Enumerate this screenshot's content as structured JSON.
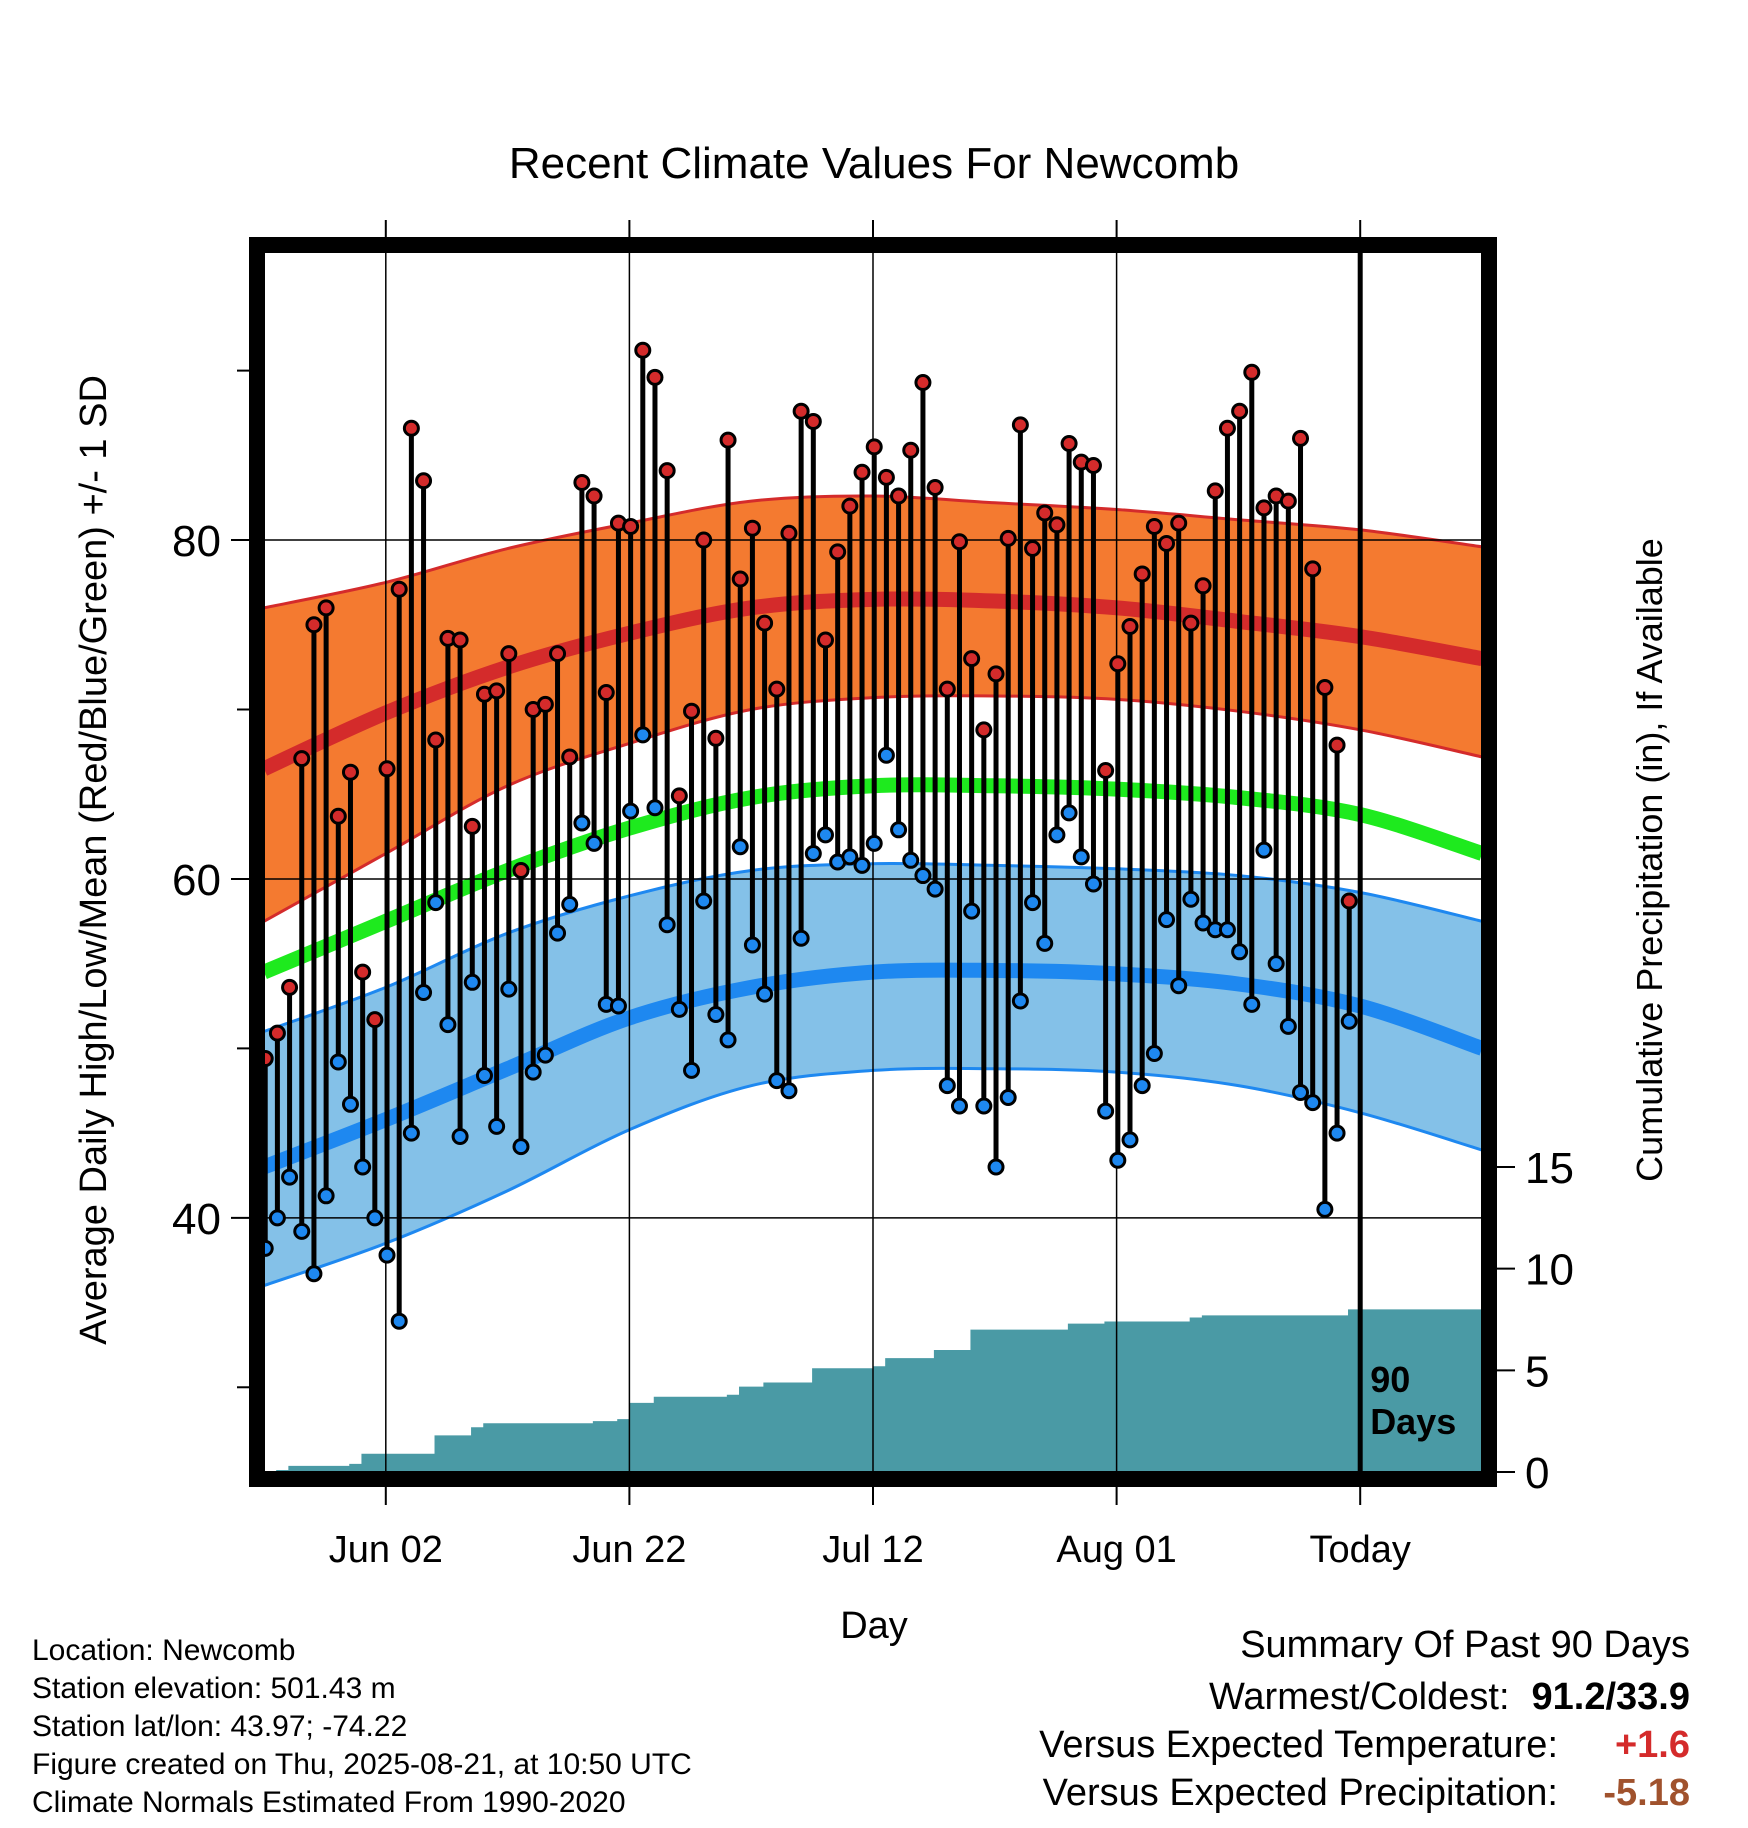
{
  "chart_data": {
    "type": "line",
    "title": "Recent Climate Values For Newcomb",
    "xlabel": "Day",
    "ylabel": "Average Daily High/Low/Mean (Red/Blue/Green) +/- 1 SD",
    "y2label": "Cumulative Precipitation (in), If Available",
    "x_tick_labels": [
      "Jun 02",
      "Jun 22",
      "Jul 12",
      "Aug 01",
      "Today"
    ],
    "x_tick_days": [
      10,
      30,
      50,
      70,
      90
    ],
    "ylim": [
      25,
      97
    ],
    "y_ticks": [
      40,
      60,
      80
    ],
    "y_minor_ticks": [
      30,
      50,
      70,
      90
    ],
    "y2lim": [
      0,
      60
    ],
    "y2_ticks": [
      0,
      5,
      10,
      15
    ],
    "xlim": [
      0,
      100
    ],
    "today_label": "90\nDays",
    "colors": {
      "high_band": "#f47a30",
      "high_mean": "#d42b2b",
      "low_band": "#84c1e8",
      "low_mean": "#1e88f0",
      "mean_normal": "#1eea1e",
      "precip": "#4a9aa5",
      "high_point": "#d42b2b",
      "low_point": "#1e88f0"
    },
    "normals": {
      "days": [
        0,
        10,
        20,
        30,
        40,
        50,
        60,
        70,
        80,
        90,
        100
      ],
      "high_mean": [
        66.5,
        69.8,
        72.5,
        74.5,
        76.0,
        76.5,
        76.4,
        76.0,
        75.2,
        74.3,
        73.0
      ],
      "high_sd_upper": [
        76.0,
        77.5,
        79.5,
        81.0,
        82.3,
        82.6,
        82.2,
        81.8,
        81.2,
        80.6,
        79.6
      ],
      "high_sd_lower": [
        57.5,
        61.5,
        65.5,
        68.0,
        70.0,
        70.7,
        70.8,
        70.6,
        69.9,
        68.8,
        67.2
      ],
      "mean_normal": [
        54.5,
        57.5,
        60.5,
        63.0,
        64.8,
        65.5,
        65.5,
        65.3,
        64.8,
        63.8,
        61.5
      ],
      "low_mean": [
        43.0,
        45.8,
        48.8,
        51.8,
        53.6,
        54.5,
        54.6,
        54.4,
        53.8,
        52.5,
        50.0
      ],
      "low_sd_upper": [
        51.0,
        53.6,
        56.8,
        59.0,
        60.5,
        60.9,
        60.8,
        60.6,
        60.2,
        59.2,
        57.5
      ],
      "low_sd_lower": [
        36.0,
        38.5,
        41.6,
        45.2,
        47.8,
        48.7,
        48.8,
        48.6,
        47.8,
        46.2,
        44.0
      ]
    },
    "daily": {
      "day": [
        0,
        1,
        2,
        3,
        4,
        5,
        6,
        7,
        8,
        9,
        10,
        11,
        12,
        13,
        14,
        15,
        16,
        17,
        18,
        19,
        20,
        21,
        22,
        23,
        24,
        25,
        26,
        27,
        28,
        29,
        30,
        31,
        32,
        33,
        34,
        35,
        36,
        37,
        38,
        39,
        40,
        41,
        42,
        43,
        44,
        45,
        46,
        47,
        48,
        49,
        50,
        51,
        52,
        53,
        54,
        55,
        56,
        57,
        58,
        59,
        60,
        61,
        62,
        63,
        64,
        65,
        66,
        67,
        68,
        69,
        70,
        71,
        72,
        73,
        74,
        75,
        76,
        77,
        78,
        79,
        80,
        81,
        82,
        83,
        84,
        85,
        86,
        87,
        88,
        89
      ],
      "high": [
        49.4,
        50.9,
        53.6,
        67.1,
        75.0,
        76.0,
        63.7,
        66.3,
        54.5,
        51.7,
        66.5,
        77.1,
        86.6,
        83.5,
        68.2,
        74.2,
        74.1,
        63.1,
        70.9,
        71.1,
        73.3,
        60.5,
        70.0,
        70.3,
        73.3,
        67.2,
        83.4,
        82.6,
        71.0,
        81.0,
        80.8,
        91.2,
        89.6,
        84.1,
        64.9,
        69.9,
        80.0,
        68.3,
        85.9,
        77.7,
        80.7,
        75.1,
        71.2,
        80.4,
        87.6,
        87.0,
        74.1,
        79.3,
        82.0,
        84.0,
        85.5,
        83.7,
        82.6,
        85.3,
        89.3,
        83.1,
        71.2,
        79.9,
        73.0,
        68.8,
        72.1,
        80.1,
        86.8,
        79.5,
        81.6,
        80.9,
        85.7,
        84.6,
        84.4,
        66.4,
        72.7,
        74.9,
        78.0,
        80.8,
        79.8,
        81.0,
        75.1,
        77.3,
        82.9,
        86.6,
        87.6,
        89.9,
        81.9,
        82.6,
        82.3,
        86.0,
        78.3,
        71.3,
        67.9,
        58.7
      ],
      "low": [
        38.2,
        40.0,
        42.4,
        39.2,
        36.7,
        41.3,
        49.2,
        46.7,
        43.0,
        40.0,
        37.8,
        33.9,
        45.0,
        53.3,
        58.6,
        51.4,
        44.8,
        53.9,
        48.4,
        45.4,
        53.5,
        44.2,
        48.6,
        49.6,
        56.8,
        58.5,
        63.3,
        62.1,
        52.6,
        52.5,
        64.0,
        68.5,
        64.2,
        57.3,
        52.3,
        48.7,
        58.7,
        52.0,
        50.5,
        61.9,
        56.1,
        53.2,
        48.1,
        47.5,
        56.5,
        61.5,
        62.6,
        61.0,
        61.3,
        60.8,
        62.1,
        67.3,
        62.9,
        61.1,
        60.2,
        59.4,
        47.8,
        46.6,
        58.1,
        46.6,
        43.0,
        47.1,
        52.8,
        58.6,
        56.2,
        62.6,
        63.9,
        61.3,
        59.7,
        46.3,
        43.4,
        44.6,
        47.8,
        49.7,
        57.6,
        53.7,
        58.8,
        57.4,
        57.0,
        57.0,
        55.7,
        52.6,
        61.7,
        55.0,
        51.3,
        47.4,
        46.8,
        40.5,
        45.0,
        51.6
      ]
    },
    "precipitation": {
      "day": [
        0,
        1,
        2,
        3,
        4,
        5,
        6,
        7,
        8,
        9,
        10,
        11,
        12,
        13,
        14,
        15,
        16,
        17,
        18,
        19,
        20,
        21,
        22,
        23,
        24,
        25,
        26,
        27,
        28,
        29,
        30,
        31,
        32,
        33,
        34,
        35,
        36,
        37,
        38,
        39,
        40,
        41,
        42,
        43,
        44,
        45,
        46,
        47,
        48,
        49,
        50,
        51,
        52,
        53,
        54,
        55,
        56,
        57,
        58,
        59,
        60,
        61,
        62,
        63,
        64,
        65,
        66,
        67,
        68,
        69,
        70,
        71,
        72,
        73,
        74,
        75,
        76,
        77,
        78,
        79,
        80,
        81,
        82,
        83,
        84,
        85,
        86,
        87,
        88,
        89,
        90,
        91,
        92,
        93,
        94,
        95,
        96,
        97,
        98,
        99
      ],
      "cumulative": [
        0.0,
        0.1,
        0.3,
        0.3,
        0.3,
        0.3,
        0.3,
        0.4,
        0.9,
        0.9,
        0.9,
        0.9,
        0.9,
        0.9,
        1.8,
        1.8,
        1.8,
        2.2,
        2.4,
        2.4,
        2.4,
        2.4,
        2.4,
        2.4,
        2.4,
        2.4,
        2.4,
        2.5,
        2.5,
        2.6,
        3.4,
        3.4,
        3.7,
        3.7,
        3.7,
        3.7,
        3.7,
        3.7,
        3.8,
        4.2,
        4.2,
        4.4,
        4.4,
        4.4,
        4.4,
        5.1,
        5.1,
        5.1,
        5.1,
        5.1,
        5.2,
        5.6,
        5.6,
        5.6,
        5.6,
        6.0,
        6.0,
        6.0,
        7.0,
        7.0,
        7.0,
        7.0,
        7.0,
        7.0,
        7.0,
        7.0,
        7.3,
        7.3,
        7.3,
        7.4,
        7.4,
        7.4,
        7.4,
        7.4,
        7.4,
        7.4,
        7.6,
        7.7,
        7.7,
        7.7,
        7.7,
        7.7,
        7.7,
        7.7,
        7.7,
        7.7,
        7.7,
        7.7,
        7.7,
        8.0,
        8.0,
        8.0,
        8.0,
        8.0,
        8.0,
        8.0,
        8.0,
        8.0,
        8.0,
        8.0
      ]
    }
  },
  "metadata": {
    "lines": [
      "Location: Newcomb",
      "Station elevation: 501.43 m",
      "Station lat/lon: 43.97; -74.22",
      "Figure created on Thu, 2025-08-21, at 10:50 UTC",
      "Climate Normals Estimated From 1990-2020"
    ]
  },
  "summary": {
    "heading": "Summary Of Past 90 Days",
    "rows": [
      {
        "label": "Warmest/Coldest:",
        "value": "91.2/33.9",
        "color": "#000000"
      },
      {
        "label": "Versus Expected Temperature:",
        "value": "+1.6",
        "color": "#d42b2b"
      },
      {
        "label": "Versus Expected Precipitation:",
        "value": "-5.18",
        "color": "#a0522d"
      }
    ]
  }
}
